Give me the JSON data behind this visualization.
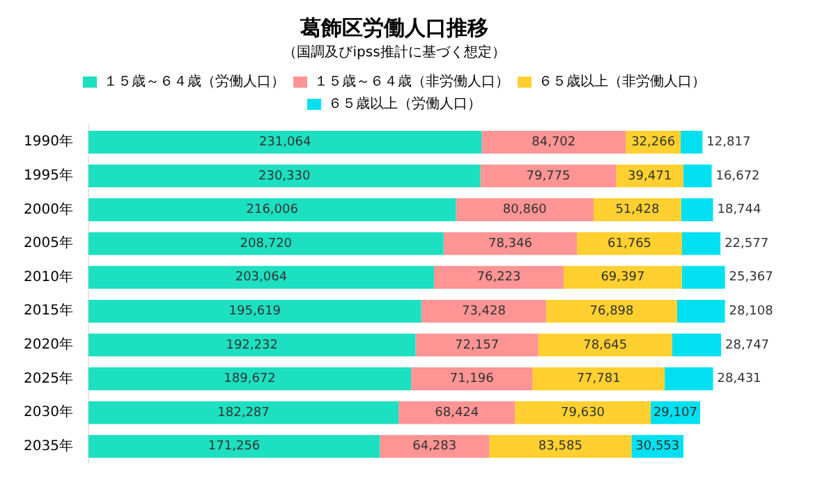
{
  "chart_data": {
    "type": "bar",
    "orientation": "horizontal",
    "stacked": true,
    "legend": "top",
    "grid": false,
    "title": "葛飾区労働人口推移",
    "subtitle": "（国調及びipss推計に基づく想定）",
    "categories": [
      "1990年",
      "1995年",
      "2000年",
      "2005年",
      "2010年",
      "2015年",
      "2020年",
      "2025年",
      "2030年",
      "2035年"
    ],
    "tick_labels": "y",
    "series": [
      {
        "name": "１５歳～６４歳（労働人口）",
        "color": "#1de0c0",
        "values": [
          231064,
          230330,
          216006,
          208720,
          203064,
          195619,
          192232,
          189672,
          182287,
          171256
        ],
        "value_labels": [
          "231,064",
          "230,330",
          "216,006",
          "208,720",
          "203,064",
          "195,619",
          "192,232",
          "189,672",
          "182,287",
          "171,256"
        ]
      },
      {
        "name": "１５歳～６４歳（非労働人口）",
        "color": "#ff9494",
        "values": [
          84702,
          79775,
          80860,
          78346,
          76223,
          73428,
          72157,
          71196,
          68424,
          64283
        ],
        "value_labels": [
          "84,702",
          "79,775",
          "80,860",
          "78,346",
          "76,223",
          "73,428",
          "72,157",
          "71,196",
          "68,424",
          "64,283"
        ]
      },
      {
        "name": "６５歳以上（非労働人口）",
        "color": "#ffd030",
        "values": [
          32266,
          39471,
          51428,
          61765,
          69397,
          76898,
          78645,
          77781,
          79630,
          83585
        ],
        "value_labels": [
          "32,266",
          "39,471",
          "51,428",
          "61,765",
          "69,397",
          "76,898",
          "78,645",
          "77,781",
          "79,630",
          "83,585"
        ]
      },
      {
        "name": "６５歳以上（労働人口）",
        "color": "#00e0f0",
        "values": [
          12817,
          16672,
          18744,
          22577,
          25367,
          28108,
          28747,
          28431,
          29107,
          30553
        ],
        "value_labels": [
          "12,817",
          "16,672",
          "18,744",
          "22,577",
          "25,367",
          "28,108",
          "28,747",
          "28,431",
          "29,107",
          "30,553"
        ]
      }
    ]
  }
}
